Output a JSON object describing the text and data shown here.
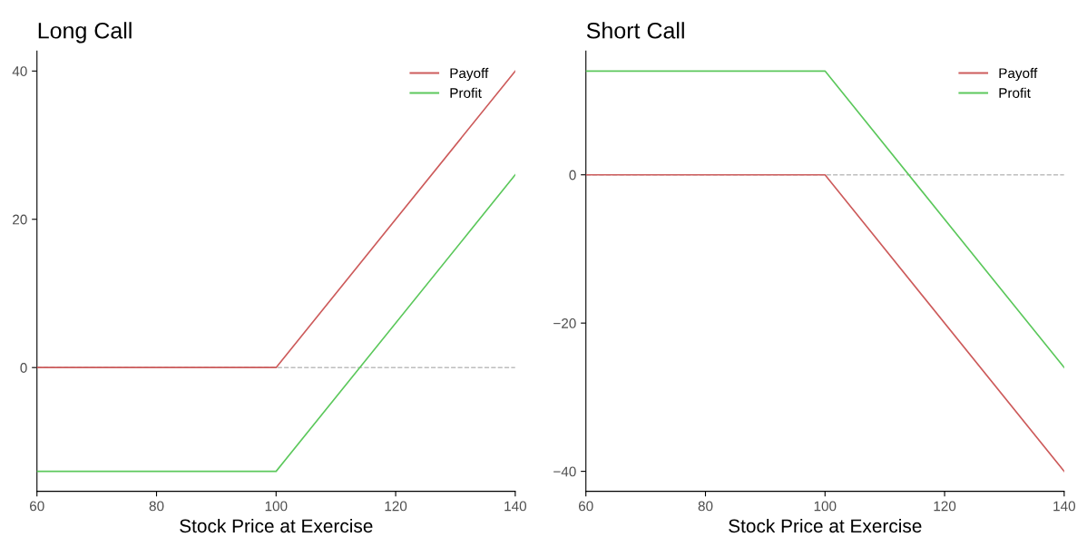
{
  "chart_data": [
    {
      "type": "line",
      "title": "Long Call",
      "xlabel": "Stock Price at Exercise",
      "x": [
        60,
        100,
        140
      ],
      "series": [
        {
          "name": "Payoff",
          "color": "#cd5c5c",
          "values": [
            0,
            0,
            40
          ]
        },
        {
          "name": "Profit",
          "color": "#5cc85c",
          "values": [
            -14,
            -14,
            26
          ]
        }
      ],
      "xlim": [
        60,
        140
      ],
      "xticks": [
        60,
        80,
        100,
        120,
        140
      ],
      "ylim": [
        -16.7,
        42.7
      ],
      "yticks": [
        0,
        20,
        40
      ],
      "ref_lines": [
        {
          "axis": "y",
          "value": 0,
          "color": "#bebebe",
          "line_style": "dashed"
        }
      ],
      "legend": "top right",
      "grid": false
    },
    {
      "type": "line",
      "title": "Short Call",
      "xlabel": "Stock Price at Exercise",
      "x": [
        60,
        100,
        140
      ],
      "series": [
        {
          "name": "Payoff",
          "color": "#cd5c5c",
          "values": [
            0,
            0,
            -40
          ]
        },
        {
          "name": "Profit",
          "color": "#5cc85c",
          "values": [
            14,
            14,
            -26
          ]
        }
      ],
      "xlim": [
        60,
        140
      ],
      "xticks": [
        60,
        80,
        100,
        120,
        140
      ],
      "ylim": [
        -42.7,
        16.7
      ],
      "yticks": [
        {
          "value": -40,
          "label": "−40"
        },
        {
          "value": -20,
          "label": "−20"
        },
        0
      ],
      "ref_lines": [
        {
          "axis": "y",
          "value": 0,
          "color": "#bebebe",
          "line_style": "dashed"
        }
      ],
      "legend": "top right",
      "grid": false
    }
  ]
}
